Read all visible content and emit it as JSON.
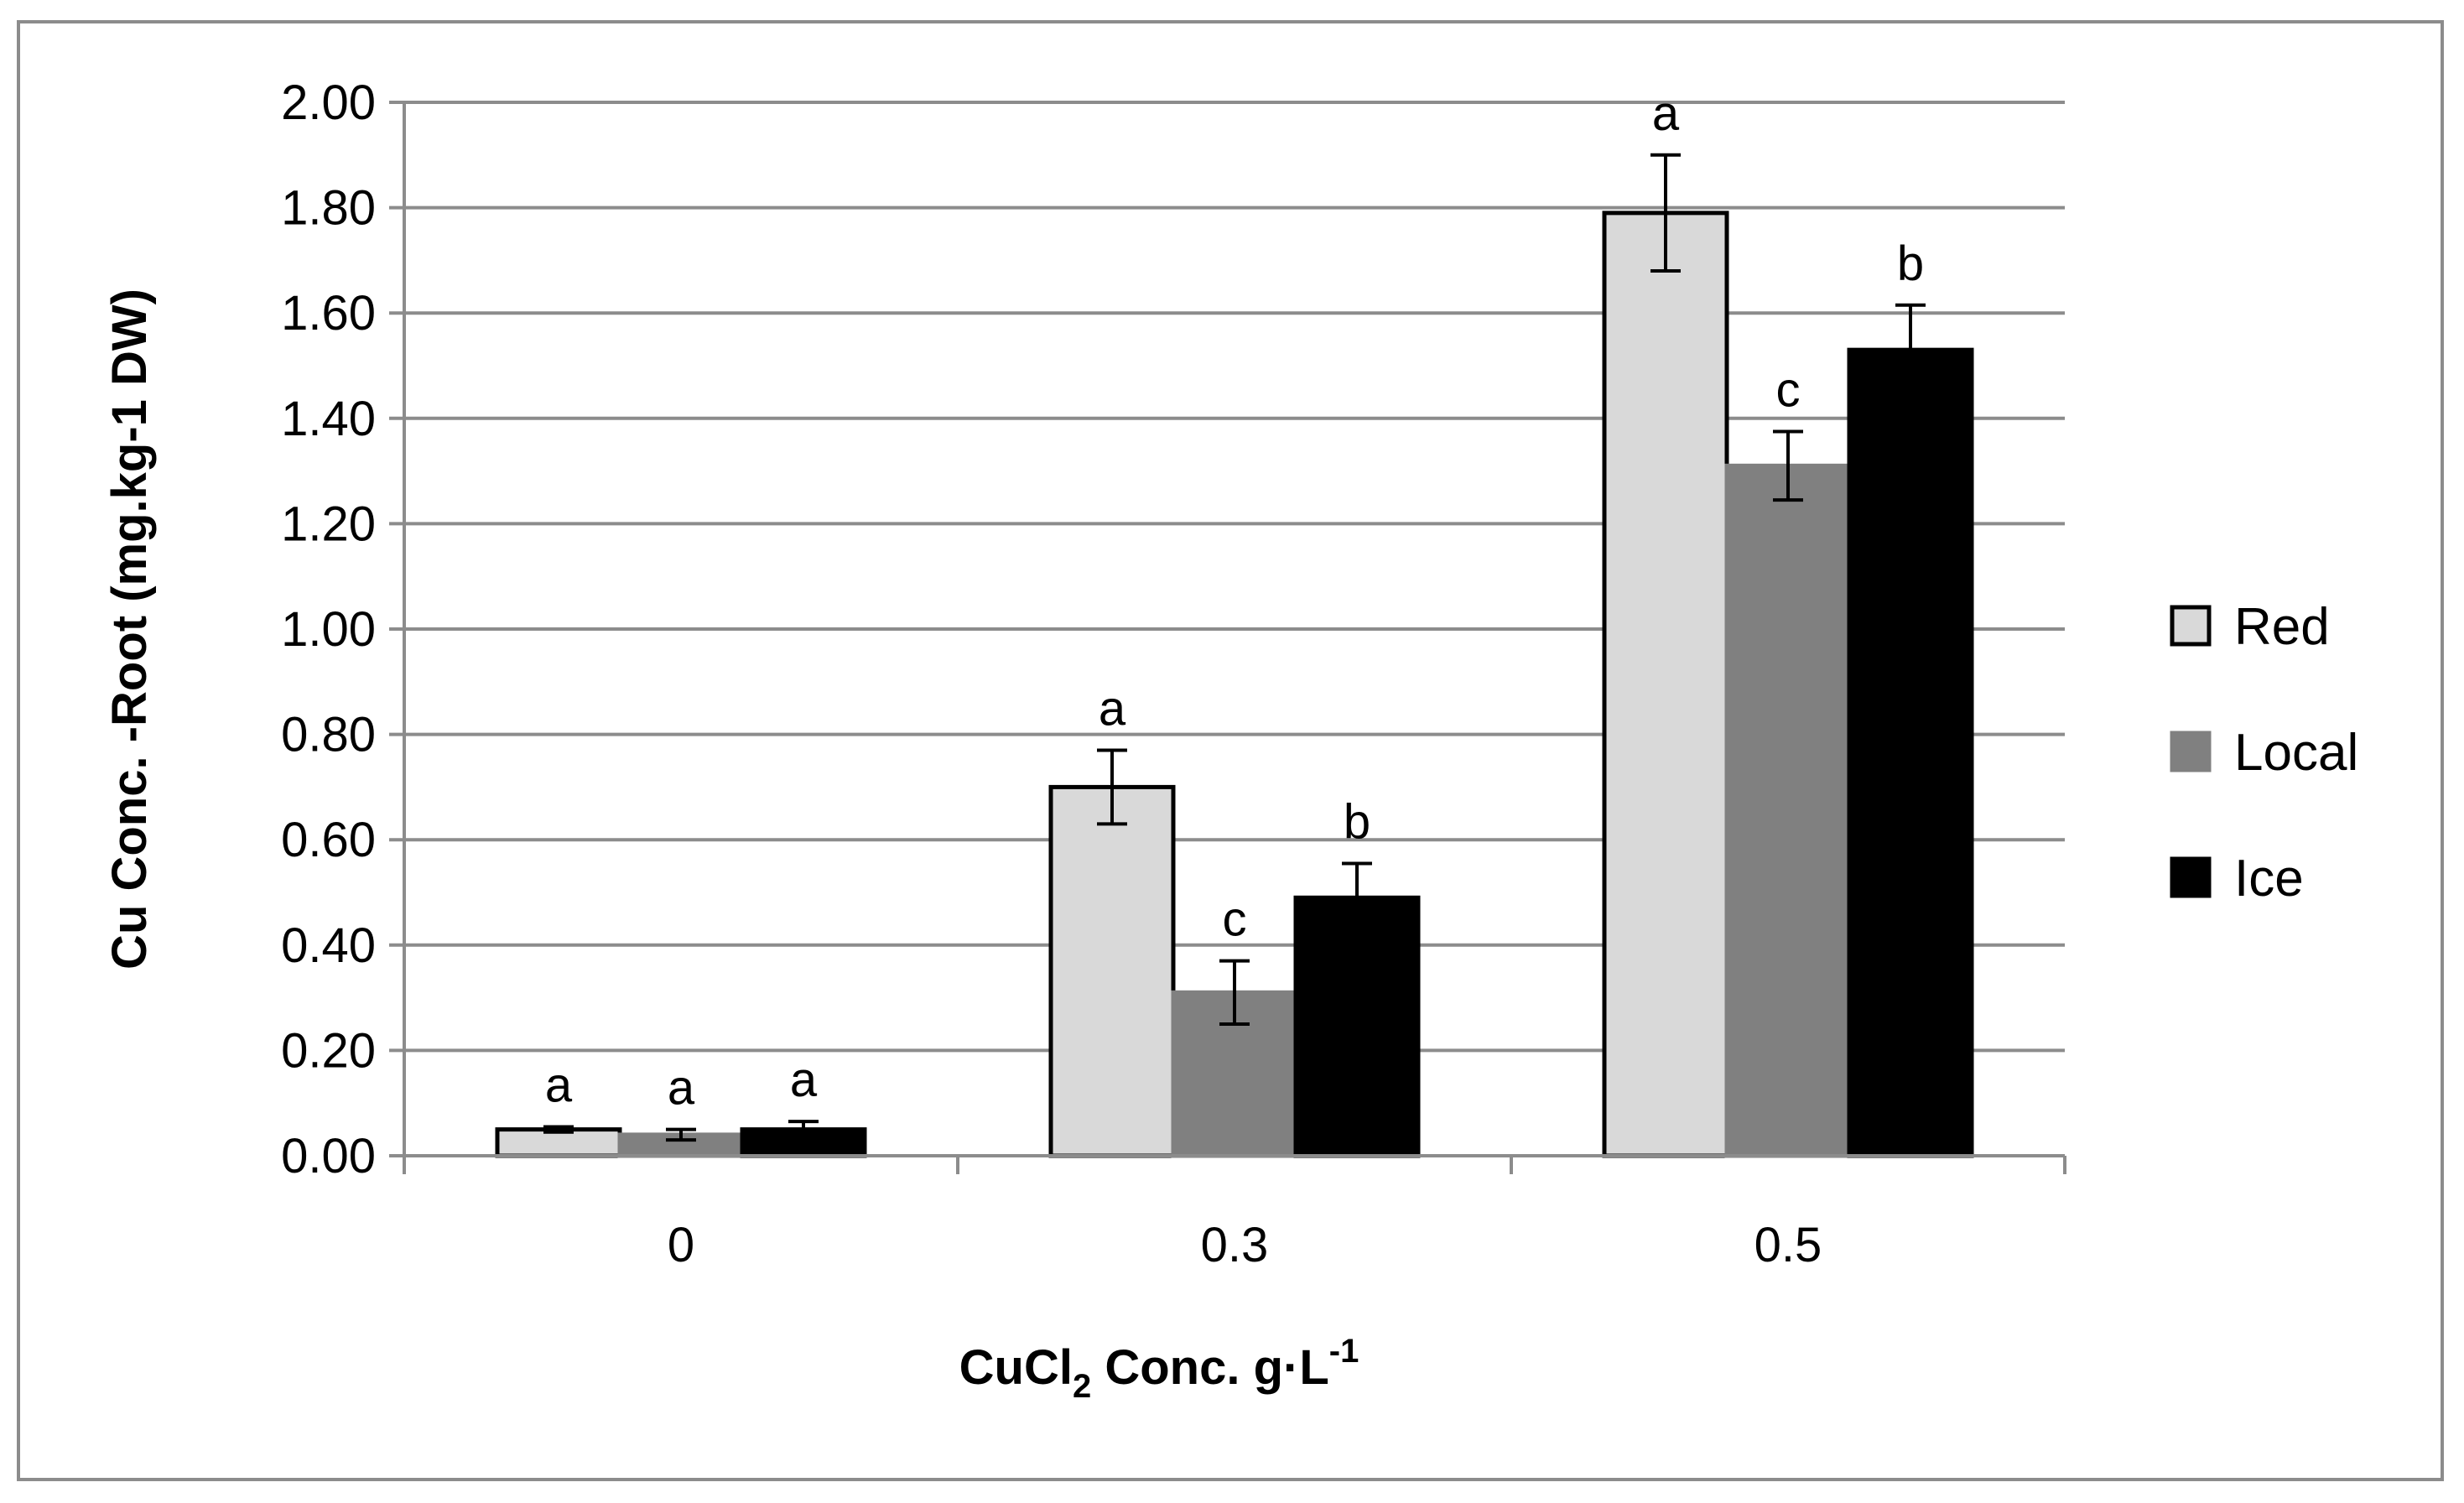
{
  "chart_data": {
    "type": "bar",
    "title": "",
    "xlabel": {
      "main": "CuCl",
      "sub": "2",
      "rest": "Conc.  g·L",
      "sup": "-1"
    },
    "ylabel": "Cu Conc. -Root (mg.kg-1 DW)",
    "ylim": [
      0,
      2.0
    ],
    "yticks": [
      "0.00",
      "0.20",
      "0.40",
      "0.60",
      "0.80",
      "1.00",
      "1.20",
      "1.40",
      "1.60",
      "1.80",
      "2.00"
    ],
    "categories": [
      "0",
      "0.3",
      "0.5"
    ],
    "grid": true,
    "legend_position": "right",
    "series": [
      {
        "name": "Red",
        "color": "#d9d9d9",
        "outline": "#000000",
        "values": [
          0.05,
          0.7,
          1.79
        ],
        "errors": [
          0.005,
          0.07,
          0.11
        ],
        "labels": [
          "a",
          "a",
          "a"
        ]
      },
      {
        "name": "Local",
        "color": "#808080",
        "outline": "#808080",
        "values": [
          0.04,
          0.31,
          1.31
        ],
        "errors": [
          0.01,
          0.06,
          0.065
        ],
        "labels": [
          "a",
          "c",
          "c"
        ]
      },
      {
        "name": "Ice",
        "color": "#000000",
        "outline": "#000000",
        "values": [
          0.05,
          0.49,
          1.53
        ],
        "errors": [
          0.015,
          0.065,
          0.085
        ],
        "labels": [
          "a",
          "b",
          "b"
        ]
      }
    ]
  }
}
